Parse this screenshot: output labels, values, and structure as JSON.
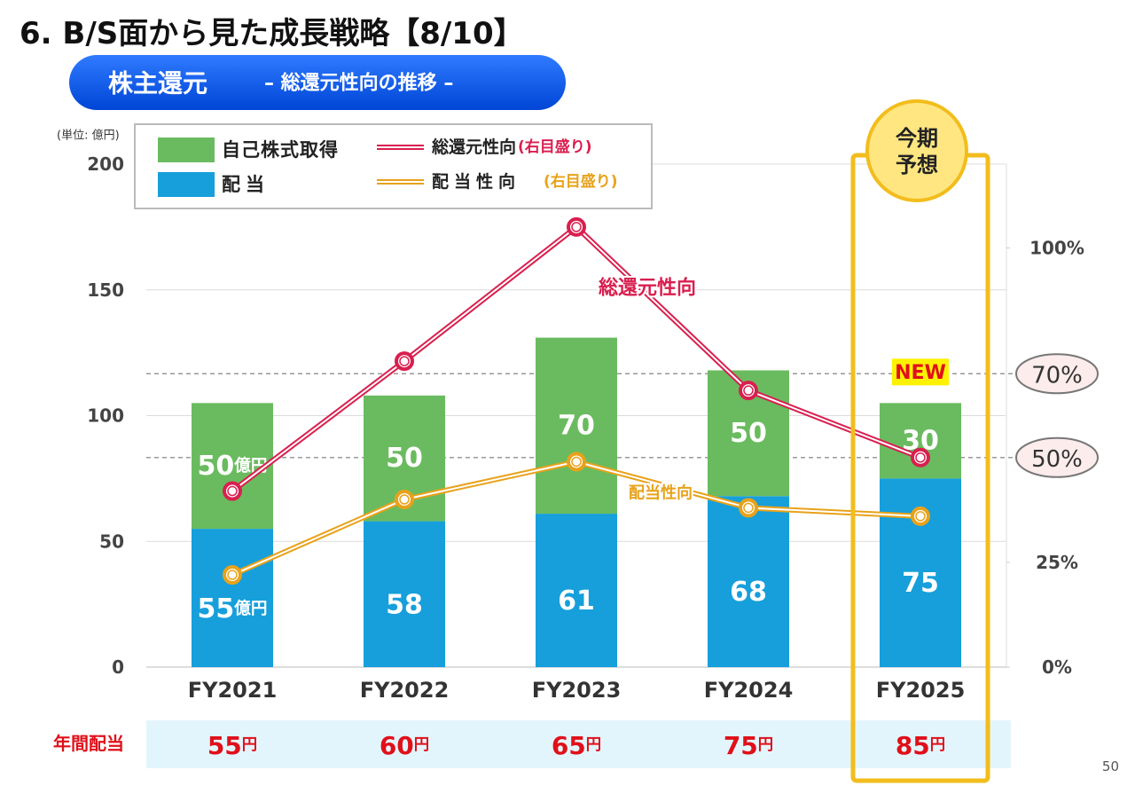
{
  "title": "6. B/S面から見た成長戦略【8/10】",
  "section": {
    "main": "株主還元",
    "sub": "– 総還元性向の推移 –"
  },
  "page_number": "50",
  "chart_data": {
    "type": "stacked-bar-line",
    "unit_label": "(単位: 億円)",
    "categories": [
      "FY2021",
      "FY2022",
      "FY2023",
      "FY2024",
      "FY2025"
    ],
    "series": [
      {
        "name": "配当",
        "type": "bar",
        "color": "#169fdb",
        "values": [
          55,
          58,
          61,
          68,
          75
        ],
        "value_labels": [
          "55億円",
          "58",
          "61",
          "68",
          "75"
        ]
      },
      {
        "name": "自己株式取得",
        "type": "bar",
        "color": "#6abb5f",
        "values": [
          50,
          50,
          70,
          50,
          30
        ],
        "value_labels": [
          "50億円",
          "50",
          "70",
          "50",
          "30"
        ]
      },
      {
        "name": "総還元性向",
        "type": "line",
        "axis": "y2",
        "color": "#d91f4f",
        "values": [
          42,
          73,
          105,
          66,
          50
        ],
        "legend_note": "(右目盛り)"
      },
      {
        "name": "配当性向",
        "type": "line",
        "axis": "y2",
        "color": "#e8a21a",
        "values": [
          22,
          40,
          49,
          38,
          36
        ],
        "legend_note": "(右目盛り)"
      }
    ],
    "ylim": [
      0,
      200
    ],
    "yticks": [
      0,
      50,
      100,
      150,
      200
    ],
    "y2lim": [
      0,
      120
    ],
    "y2ticks": [
      {
        "value": 0,
        "label": "0%"
      },
      {
        "value": 25,
        "label": "25%"
      },
      {
        "value": 50,
        "label": "50%",
        "highlight": true
      },
      {
        "value": 70,
        "label": "70%",
        "highlight": true
      },
      {
        "value": 100,
        "label": "100%"
      }
    ],
    "grid": true,
    "forecast": {
      "category": "FY2025",
      "label": "今期予想",
      "badge": "NEW"
    },
    "annual_dividend": {
      "label": "年間配当",
      "values": [
        55,
        60,
        65,
        75,
        85
      ],
      "value_labels": [
        "55円",
        "60円",
        "65円",
        "75円",
        "85円"
      ]
    }
  }
}
